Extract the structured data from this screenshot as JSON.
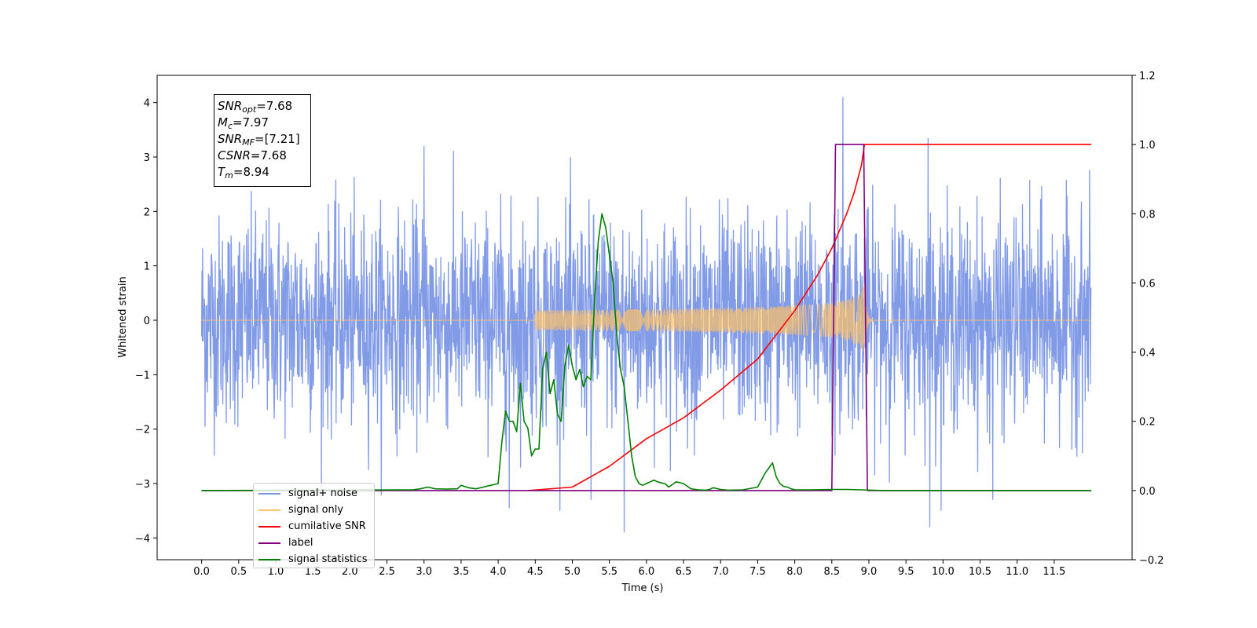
{
  "chart_data": {
    "type": "line",
    "ylabel": "Whitened strain",
    "xlabel": "Time (s)",
    "xlim": [
      -0.6,
      12.55
    ],
    "ylim_left": [
      -4.4,
      4.5
    ],
    "ylim_right": [
      -0.2,
      1.2
    ],
    "x_ticks": [
      "0.0",
      "0.5",
      "1.0",
      "1.5",
      "2.0",
      "2.5",
      "3.0",
      "3.5",
      "4.0",
      "4.5",
      "5.0",
      "5.5",
      "6.0",
      "6.5",
      "7.0",
      "7.5",
      "8.0",
      "8.5",
      "9.0",
      "9.5",
      "10.0",
      "10.5",
      "11.0",
      "11.5"
    ],
    "y_ticks_left": [
      "4",
      "3",
      "2",
      "1",
      "0",
      "−1",
      "−2",
      "−3",
      "−4"
    ],
    "y_ticks_right": [
      "1.2",
      "1.0",
      "0.8",
      "0.6",
      "0.4",
      "0.2",
      "0.0",
      "−0.2"
    ],
    "annotation": {
      "snr_opt": "7.68",
      "mc": "7.97",
      "snr_mf": "[7.21]",
      "csnr": "7.68",
      "tm": "8.94"
    },
    "series": [
      {
        "name": "signal+ noise",
        "color": "#7b96e6",
        "axis": "left",
        "x_range": [
          0.0,
          12.0
        ],
        "noise_level": 1.0,
        "extremes": [
          [
            8.65,
            4.1
          ],
          [
            9.8,
            3.35
          ],
          [
            3.0,
            3.2
          ],
          [
            5.7,
            -3.9
          ],
          [
            9.82,
            -3.8
          ],
          [
            10.67,
            -3.3
          ],
          [
            4.15,
            -3.45
          ],
          [
            5.25,
            -3.3
          ]
        ]
      },
      {
        "name": "signal only",
        "color": "#ffc267",
        "axis": "left",
        "chirp_start": 4.5,
        "merger": 8.94,
        "ringdown_end": 9.05,
        "amplitude_at_merger": 0.75
      },
      {
        "name": "cumilative SNR",
        "color": "#ff0000",
        "axis": "right",
        "x": [
          4.4,
          5.0,
          5.5,
          6.0,
          6.5,
          7.0,
          7.5,
          8.0,
          8.3,
          8.5,
          8.7,
          8.8,
          8.9,
          8.94,
          9.0,
          12.0
        ],
        "y": [
          0.0,
          0.01,
          0.07,
          0.15,
          0.21,
          0.29,
          0.38,
          0.52,
          0.62,
          0.7,
          0.8,
          0.86,
          0.94,
          1.0,
          1.0,
          1.0
        ]
      },
      {
        "name": "label",
        "color": "#800080",
        "axis": "right",
        "x": [
          0.0,
          8.5,
          8.55,
          8.93,
          8.98,
          12.0
        ],
        "y": [
          0.0,
          0.0,
          1.0,
          1.0,
          0.0,
          0.0
        ]
      },
      {
        "name": "signal statistics",
        "color": "#008000",
        "axis": "right",
        "x": [
          0.0,
          2.85,
          2.95,
          3.05,
          3.15,
          3.3,
          3.45,
          3.5,
          3.6,
          3.7,
          3.8,
          3.9,
          4.0,
          4.05,
          4.1,
          4.15,
          4.2,
          4.25,
          4.3,
          4.35,
          4.4,
          4.45,
          4.5,
          4.55,
          4.6,
          4.65,
          4.7,
          4.75,
          4.8,
          4.85,
          4.9,
          4.95,
          5.0,
          5.05,
          5.1,
          5.15,
          5.2,
          5.25,
          5.3,
          5.35,
          5.4,
          5.45,
          5.5,
          5.55,
          5.6,
          5.65,
          5.7,
          5.75,
          5.8,
          5.85,
          5.9,
          5.95,
          6.0,
          6.05,
          6.1,
          6.15,
          6.2,
          6.25,
          6.3,
          6.4,
          6.5,
          6.6,
          6.7,
          6.8,
          6.85,
          6.9,
          7.0,
          7.1,
          7.3,
          7.5,
          7.6,
          7.7,
          7.75,
          7.8,
          7.85,
          7.9,
          7.95,
          8.0,
          8.1,
          8.2,
          8.5,
          8.7,
          8.9,
          9.2,
          12.0
        ],
        "y": [
          0.0,
          0.002,
          0.005,
          0.01,
          0.005,
          0.004,
          0.005,
          0.015,
          0.008,
          0.005,
          0.01,
          0.015,
          0.02,
          0.14,
          0.23,
          0.2,
          0.2,
          0.17,
          0.31,
          0.2,
          0.18,
          0.1,
          0.12,
          0.12,
          0.35,
          0.4,
          0.28,
          0.32,
          0.22,
          0.2,
          0.36,
          0.42,
          0.36,
          0.32,
          0.35,
          0.3,
          0.33,
          0.32,
          0.55,
          0.72,
          0.8,
          0.76,
          0.68,
          0.6,
          0.45,
          0.35,
          0.3,
          0.2,
          0.1,
          0.04,
          0.02,
          0.015,
          0.02,
          0.025,
          0.03,
          0.025,
          0.022,
          0.02,
          0.01,
          0.025,
          0.02,
          0.005,
          0.002,
          0.001,
          0.003,
          0.008,
          0.003,
          0.001,
          0.002,
          0.01,
          0.05,
          0.08,
          0.04,
          0.02,
          0.012,
          0.01,
          0.005,
          0.002,
          0.002,
          0.002,
          0.003,
          0.003,
          0.002,
          0.0,
          0.0
        ]
      }
    ],
    "legend_placement": "lower-left",
    "grid": false
  }
}
